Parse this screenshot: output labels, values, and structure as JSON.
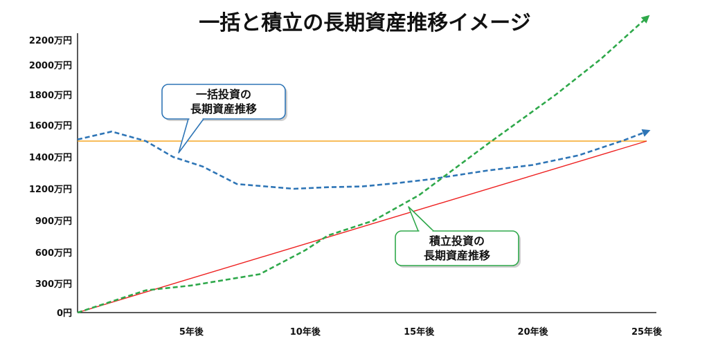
{
  "chart_data": {
    "type": "line",
    "title": "一括と積立の長期資産推移イメージ",
    "xlabel": "",
    "ylabel": "",
    "x_ticks": [
      "5年後",
      "10年後",
      "15年後",
      "20年後",
      "25年後"
    ],
    "y_ticks": [
      "0円",
      "300万円",
      "600万円",
      "900万円",
      "1200万円",
      "1400万円",
      "1600万円",
      "1800万円",
      "2000万円",
      "2200万円"
    ],
    "xlim": [
      0,
      25
    ],
    "grid": false,
    "series": [
      {
        "key": "lump_sum",
        "style": "dashed-arrow",
        "color": "#2e75b6",
        "x": [
          0,
          1.5,
          3,
          4.2,
          5.5,
          7,
          9.5,
          11,
          12.5,
          14,
          15.5,
          18,
          20,
          22,
          24,
          25
        ],
        "y": [
          1510,
          1560,
          1500,
          1400,
          1340,
          1230,
          1200,
          1210,
          1215,
          1235,
          1260,
          1315,
          1350,
          1410,
          1505,
          1560
        ]
      },
      {
        "key": "lump_sum_principal",
        "style": "solid",
        "color": "#f5a623",
        "x": [
          0,
          25
        ],
        "y": [
          1500,
          1500
        ]
      },
      {
        "key": "installment_principal",
        "style": "solid",
        "color": "#ee2222",
        "x": [
          0,
          25
        ],
        "y": [
          0,
          1500
        ]
      },
      {
        "key": "installment",
        "style": "dashed-arrow",
        "color": "#2ea84a",
        "x": [
          0,
          3,
          5,
          8,
          10,
          11,
          13,
          15,
          18,
          21,
          23,
          25
        ],
        "y": [
          0,
          230,
          280,
          390,
          620,
          760,
          900,
          1140,
          1480,
          1800,
          2050,
          2390
        ]
      }
    ],
    "callouts": [
      {
        "key": "lump_sum_callout",
        "lines": [
          "一括投資の",
          "長期資産推移"
        ],
        "border_color": "#2e75b6"
      },
      {
        "key": "installment_callout",
        "lines": [
          "積立投資の",
          "長期資産推移"
        ],
        "border_color": "#2ea84a"
      }
    ],
    "colors": {
      "axis": "#222222",
      "callout_fill": "#ffffff"
    }
  }
}
